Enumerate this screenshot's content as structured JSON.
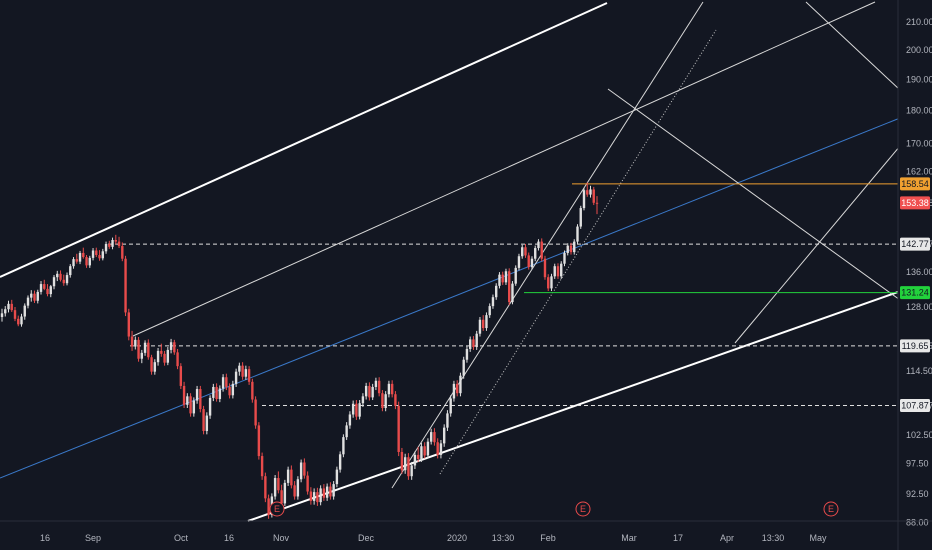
{
  "chart_data": {
    "type": "candlestick",
    "y_scale": "log",
    "ylim": [
      87.5,
      216
    ],
    "grid": false,
    "y_ticks": [
      "210.00",
      "200.00",
      "190.00",
      "180.00",
      "170.00",
      "162.00",
      "153.38",
      "142.77",
      "136.00",
      "128.00",
      "119.65",
      "114.50",
      "107.87",
      "102.50",
      "97.50",
      "92.50",
      "88.00"
    ],
    "x_ticks": [
      "16",
      "Sep",
      "Oct",
      "16",
      "Nov",
      "Dec",
      "2020",
      "13:30",
      "Feb",
      "Mar",
      "17",
      "Apr",
      "13:30",
      "May"
    ],
    "price_tags": [
      {
        "label": "158.54",
        "value": 158.54,
        "bg": "#f0a030",
        "fg": "#131722"
      },
      {
        "label": "153.38",
        "value": 153.38,
        "bg": "#f05050",
        "fg": "#ffffff"
      },
      {
        "label": "142.77",
        "value": 142.77,
        "bg": "#e8e8e8",
        "fg": "#131722"
      },
      {
        "label": "131.24",
        "value": 131.24,
        "bg": "#22d23c",
        "fg": "#131722"
      },
      {
        "label": "119.65",
        "value": 119.65,
        "bg": "#e8e8e8",
        "fg": "#131722"
      },
      {
        "label": "107.87",
        "value": 107.87,
        "bg": "#e8e8e8",
        "fg": "#131722"
      }
    ],
    "earnings_markers": [
      "E",
      "E",
      "E"
    ],
    "colors": {
      "background": "#131722",
      "up": "#e0e0e0",
      "down": "#e84b4b",
      "orange": "#f0a030",
      "green": "#22d23c",
      "blue": "#3a78c8",
      "axis_text": "#b2b5be"
    },
    "candles": [
      [
        125.8,
        127.6,
        124.8,
        126.6
      ],
      [
        126.6,
        128.2,
        125.9,
        127.5
      ],
      [
        127.5,
        129.4,
        126.8,
        128.7
      ],
      [
        128.7,
        129.6,
        126.9,
        127.3
      ],
      [
        127.3,
        128.0,
        124.9,
        125.4
      ],
      [
        125.4,
        126.1,
        123.8,
        124.2
      ],
      [
        124.2,
        126.5,
        123.7,
        125.9
      ],
      [
        125.9,
        128.8,
        125.2,
        128.3
      ],
      [
        128.3,
        130.6,
        127.7,
        130.1
      ],
      [
        130.1,
        131.8,
        129.2,
        131.0
      ],
      [
        131.0,
        131.7,
        128.9,
        129.4
      ],
      [
        129.4,
        131.9,
        128.8,
        131.4
      ],
      [
        131.4,
        133.9,
        130.8,
        133.2
      ],
      [
        133.2,
        134.2,
        131.8,
        132.1
      ],
      [
        132.1,
        133.2,
        130.4,
        130.9
      ],
      [
        130.9,
        133.0,
        130.2,
        132.7
      ],
      [
        132.7,
        135.3,
        132.0,
        134.8
      ],
      [
        134.8,
        136.3,
        133.9,
        135.6
      ],
      [
        135.6,
        136.4,
        133.8,
        134.2
      ],
      [
        134.2,
        135.4,
        132.8,
        133.4
      ],
      [
        133.4,
        135.9,
        132.9,
        135.3
      ],
      [
        135.3,
        137.9,
        134.7,
        137.4
      ],
      [
        137.4,
        139.6,
        136.8,
        139.1
      ],
      [
        139.1,
        140.4,
        138.0,
        138.5
      ],
      [
        138.5,
        141.1,
        137.9,
        140.6
      ],
      [
        140.6,
        141.9,
        139.2,
        139.6
      ],
      [
        139.6,
        140.1,
        137.0,
        137.6
      ],
      [
        137.6,
        139.9,
        137.0,
        139.4
      ],
      [
        139.4,
        141.8,
        138.8,
        141.2
      ],
      [
        141.2,
        141.9,
        139.6,
        140.1
      ],
      [
        140.1,
        141.3,
        138.7,
        139.3
      ],
      [
        139.3,
        141.6,
        138.8,
        141.0
      ],
      [
        141.0,
        143.4,
        140.4,
        142.8
      ],
      [
        142.8,
        143.6,
        141.6,
        142.1
      ],
      [
        142.1,
        144.4,
        141.5,
        143.8
      ],
      [
        143.8,
        145.1,
        142.7,
        143.4
      ],
      [
        143.4,
        144.6,
        141.8,
        142.3
      ],
      [
        142.3,
        143.2,
        138.6,
        139.2
      ],
      [
        139.2,
        139.9,
        126.0,
        126.8
      ],
      [
        126.8,
        127.6,
        120.8,
        121.6
      ],
      [
        121.6,
        122.8,
        118.6,
        119.5
      ],
      [
        119.5,
        121.6,
        118.9,
        120.9
      ],
      [
        120.9,
        121.5,
        116.4,
        117.0
      ],
      [
        117.0,
        118.8,
        116.1,
        118.2
      ],
      [
        118.2,
        120.8,
        117.6,
        120.3
      ],
      [
        120.3,
        121.0,
        116.8,
        117.3
      ],
      [
        117.3,
        117.8,
        113.8,
        114.4
      ],
      [
        114.4,
        116.9,
        113.8,
        116.3
      ],
      [
        116.3,
        119.2,
        115.6,
        118.6
      ],
      [
        118.6,
        120.1,
        117.4,
        118.0
      ],
      [
        118.0,
        118.6,
        115.6,
        116.2
      ],
      [
        116.2,
        119.4,
        115.7,
        118.8
      ],
      [
        118.8,
        121.1,
        118.1,
        120.4
      ],
      [
        120.4,
        120.9,
        117.8,
        118.3
      ],
      [
        118.3,
        119.0,
        114.9,
        115.5
      ],
      [
        115.5,
        116.1,
        111.0,
        111.6
      ],
      [
        111.6,
        112.4,
        107.4,
        108.0
      ],
      [
        108.0,
        110.2,
        107.4,
        109.6
      ],
      [
        109.6,
        110.2,
        105.8,
        106.4
      ],
      [
        106.4,
        109.4,
        105.8,
        108.8
      ],
      [
        108.8,
        111.6,
        108.2,
        111.0
      ],
      [
        111.0,
        111.6,
        106.6,
        107.2
      ],
      [
        107.2,
        107.8,
        102.6,
        103.2
      ],
      [
        103.2,
        106.6,
        102.6,
        106.0
      ],
      [
        106.0,
        109.8,
        105.4,
        109.3
      ],
      [
        109.3,
        112.0,
        108.7,
        111.4
      ],
      [
        111.4,
        112.1,
        108.6,
        109.1
      ],
      [
        109.1,
        111.7,
        108.5,
        111.1
      ],
      [
        111.1,
        113.9,
        110.5,
        113.3
      ],
      [
        113.3,
        114.0,
        110.8,
        111.4
      ],
      [
        111.4,
        112.1,
        109.2,
        109.8
      ],
      [
        109.8,
        112.6,
        109.2,
        112.0
      ],
      [
        112.0,
        115.0,
        111.4,
        114.4
      ],
      [
        114.4,
        116.2,
        113.6,
        115.6
      ],
      [
        115.6,
        116.3,
        112.8,
        113.4
      ],
      [
        113.4,
        115.6,
        112.8,
        114.9
      ],
      [
        114.9,
        115.5,
        111.8,
        112.4
      ],
      [
        112.4,
        113.0,
        108.4,
        109.0
      ],
      [
        109.0,
        109.6,
        103.6,
        104.2
      ],
      [
        104.2,
        104.8,
        98.2,
        98.8
      ],
      [
        98.8,
        99.4,
        94.8,
        95.4
      ],
      [
        95.4,
        96.0,
        91.2,
        91.8
      ],
      [
        91.8,
        92.4,
        88.6,
        89.2
      ],
      [
        89.2,
        92.6,
        88.8,
        92.1
      ],
      [
        92.1,
        95.6,
        91.6,
        95.1
      ],
      [
        95.1,
        96.2,
        92.6,
        93.1
      ],
      [
        93.1,
        94.0,
        90.4,
        91.0
      ],
      [
        91.0,
        94.8,
        90.6,
        94.3
      ],
      [
        94.3,
        97.0,
        93.8,
        96.5
      ],
      [
        96.5,
        97.2,
        93.4,
        93.9
      ],
      [
        93.9,
        94.6,
        91.6,
        92.1
      ],
      [
        92.1,
        95.4,
        91.6,
        94.9
      ],
      [
        94.9,
        98.2,
        94.4,
        97.7
      ],
      [
        97.7,
        98.4,
        95.0,
        95.5
      ],
      [
        95.5,
        96.2,
        92.4,
        92.9
      ],
      [
        92.9,
        93.6,
        90.8,
        91.4
      ],
      [
        91.4,
        93.4,
        90.8,
        92.8
      ],
      [
        92.8,
        93.5,
        90.6,
        91.2
      ],
      [
        91.2,
        93.9,
        90.7,
        93.4
      ],
      [
        93.4,
        94.1,
        91.4,
        91.9
      ],
      [
        91.9,
        94.2,
        91.4,
        93.7
      ],
      [
        93.7,
        94.4,
        91.6,
        92.1
      ],
      [
        92.1,
        94.6,
        91.6,
        94.1
      ],
      [
        94.1,
        97.0,
        93.6,
        96.5
      ],
      [
        96.5,
        99.6,
        96.0,
        99.1
      ],
      [
        99.1,
        102.6,
        98.6,
        102.1
      ],
      [
        102.1,
        104.8,
        101.6,
        104.2
      ],
      [
        104.2,
        106.8,
        103.6,
        106.2
      ],
      [
        106.2,
        108.8,
        105.6,
        108.2
      ],
      [
        108.2,
        108.9,
        105.2,
        105.8
      ],
      [
        105.8,
        108.9,
        105.3,
        108.3
      ],
      [
        108.3,
        110.2,
        107.6,
        109.6
      ],
      [
        109.6,
        112.2,
        109.0,
        111.6
      ],
      [
        111.6,
        112.3,
        108.8,
        109.4
      ],
      [
        109.4,
        112.0,
        108.9,
        111.4
      ],
      [
        111.4,
        113.2,
        110.8,
        112.6
      ],
      [
        112.6,
        113.3,
        109.6,
        110.2
      ],
      [
        110.2,
        110.8,
        106.8,
        107.4
      ],
      [
        107.4,
        110.6,
        106.8,
        110.0
      ],
      [
        110.0,
        112.6,
        109.4,
        112.0
      ],
      [
        112.0,
        112.7,
        109.4,
        110.0
      ],
      [
        110.0,
        110.6,
        107.2,
        107.8
      ],
      [
        107.8,
        108.6,
        98.8,
        99.5
      ],
      [
        99.5,
        100.2,
        95.8,
        96.4
      ],
      [
        96.4,
        99.2,
        95.8,
        98.6
      ],
      [
        98.6,
        99.3,
        94.8,
        95.4
      ],
      [
        95.4,
        97.8,
        94.8,
        97.2
      ],
      [
        97.2,
        99.6,
        96.6,
        99.0
      ],
      [
        99.0,
        100.4,
        97.8,
        98.3
      ],
      [
        98.3,
        101.1,
        97.8,
        100.5
      ],
      [
        100.5,
        101.2,
        98.4,
        98.9
      ],
      [
        98.9,
        101.9,
        98.4,
        101.3
      ],
      [
        101.3,
        103.6,
        100.8,
        103.0
      ],
      [
        103.0,
        103.7,
        100.6,
        101.2
      ],
      [
        101.2,
        101.9,
        98.4,
        99.0
      ],
      [
        99.0,
        101.6,
        98.4,
        101.0
      ],
      [
        101.0,
        104.4,
        100.4,
        103.8
      ],
      [
        103.8,
        107.0,
        103.2,
        106.4
      ],
      [
        106.4,
        109.8,
        105.8,
        109.2
      ],
      [
        109.2,
        112.6,
        108.6,
        112.0
      ],
      [
        112.0,
        112.7,
        109.6,
        110.2
      ],
      [
        110.2,
        114.2,
        109.6,
        113.6
      ],
      [
        113.6,
        117.4,
        113.0,
        116.8
      ],
      [
        116.8,
        119.6,
        116.2,
        119.0
      ],
      [
        119.0,
        121.6,
        118.4,
        121.0
      ],
      [
        121.0,
        121.7,
        118.8,
        119.4
      ],
      [
        119.4,
        122.8,
        118.8,
        122.2
      ],
      [
        122.2,
        125.8,
        121.6,
        125.2
      ],
      [
        125.2,
        126.2,
        122.8,
        123.4
      ],
      [
        123.4,
        126.8,
        122.8,
        126.2
      ],
      [
        126.2,
        128.8,
        125.6,
        128.2
      ],
      [
        128.2,
        130.8,
        127.6,
        130.2
      ],
      [
        130.2,
        133.4,
        129.6,
        132.8
      ],
      [
        132.8,
        136.0,
        132.2,
        135.4
      ],
      [
        135.4,
        136.1,
        133.0,
        133.6
      ],
      [
        133.6,
        136.8,
        133.0,
        136.2
      ],
      [
        136.2,
        136.9,
        128.4,
        129.1
      ],
      [
        129.1,
        133.9,
        128.6,
        133.3
      ],
      [
        133.3,
        137.6,
        132.8,
        137.0
      ],
      [
        137.0,
        140.4,
        136.4,
        139.8
      ],
      [
        139.8,
        142.6,
        139.2,
        142.0
      ],
      [
        142.0,
        142.8,
        139.4,
        140.0
      ],
      [
        140.0,
        140.7,
        136.6,
        137.2
      ],
      [
        137.2,
        139.8,
        136.6,
        139.2
      ],
      [
        139.2,
        142.4,
        138.6,
        141.8
      ],
      [
        141.8,
        144.0,
        141.2,
        143.4
      ],
      [
        143.4,
        144.2,
        138.6,
        139.2
      ],
      [
        139.2,
        139.9,
        134.2,
        134.8
      ],
      [
        134.8,
        135.5,
        131.6,
        132.2
      ],
      [
        132.2,
        135.6,
        131.6,
        135.0
      ],
      [
        135.0,
        138.0,
        134.4,
        137.4
      ],
      [
        137.4,
        138.1,
        134.4,
        135.0
      ],
      [
        135.0,
        138.6,
        134.4,
        138.0
      ],
      [
        138.0,
        141.2,
        137.4,
        140.6
      ],
      [
        140.6,
        143.0,
        140.0,
        142.4
      ],
      [
        142.4,
        143.1,
        140.2,
        140.8
      ],
      [
        140.8,
        144.0,
        140.2,
        143.4
      ],
      [
        143.4,
        147.8,
        142.8,
        147.2
      ],
      [
        147.2,
        152.6,
        146.6,
        152.0
      ],
      [
        152.0,
        157.4,
        151.4,
        156.8
      ],
      [
        156.8,
        158.9,
        155.0,
        155.6
      ],
      [
        155.6,
        158.0,
        154.8,
        157.0
      ],
      [
        157.0,
        157.7,
        152.8,
        153.4
      ],
      [
        153.4,
        155.2,
        150.4,
        153.38
      ]
    ]
  }
}
